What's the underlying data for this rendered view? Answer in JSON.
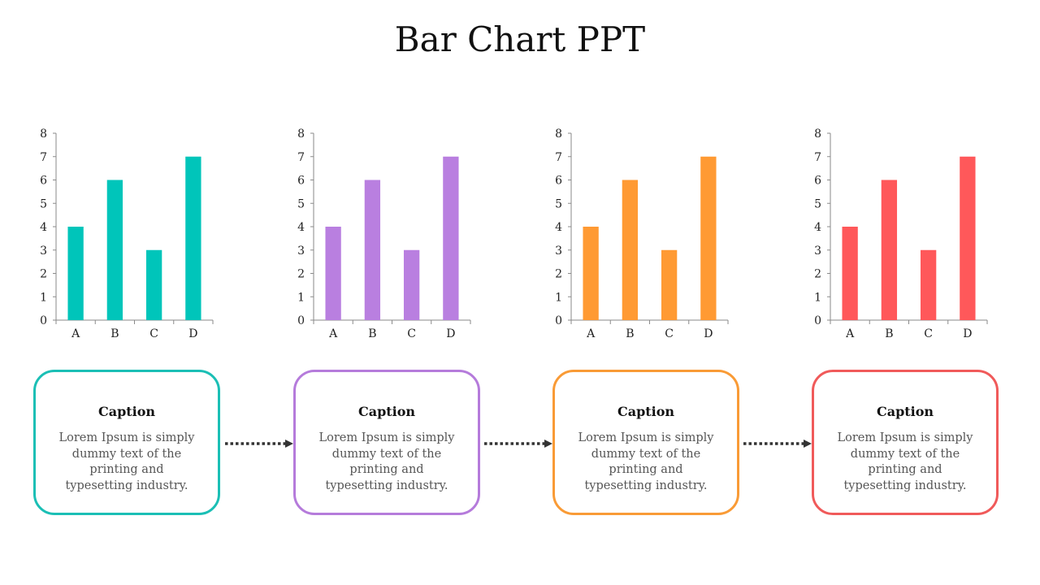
{
  "title": "Bar Chart PPT",
  "chart_data": [
    {
      "type": "bar",
      "categories": [
        "A",
        "B",
        "C",
        "D"
      ],
      "values": [
        4,
        6,
        3,
        7
      ],
      "ylim": [
        0,
        8
      ],
      "yticks": [
        "0",
        "1",
        "2",
        "3",
        "4",
        "5",
        "6",
        "7",
        "8"
      ],
      "color": "#00C5BA"
    },
    {
      "type": "bar",
      "categories": [
        "A",
        "B",
        "C",
        "D"
      ],
      "values": [
        4,
        6,
        3,
        7
      ],
      "ylim": [
        0,
        8
      ],
      "yticks": [
        "0",
        "1",
        "2",
        "3",
        "4",
        "5",
        "6",
        "7",
        "8"
      ],
      "color": "#B97FE0"
    },
    {
      "type": "bar",
      "categories": [
        "A",
        "B",
        "C",
        "D"
      ],
      "values": [
        4,
        6,
        3,
        7
      ],
      "ylim": [
        0,
        8
      ],
      "yticks": [
        "0",
        "1",
        "2",
        "3",
        "4",
        "5",
        "6",
        "7",
        "8"
      ],
      "color": "#FF9A33"
    },
    {
      "type": "bar",
      "categories": [
        "A",
        "B",
        "C",
        "D"
      ],
      "values": [
        4,
        6,
        3,
        7
      ],
      "ylim": [
        0,
        8
      ],
      "yticks": [
        "0",
        "1",
        "2",
        "3",
        "4",
        "5",
        "6",
        "7",
        "8"
      ],
      "color": "#FF585A"
    }
  ],
  "captions": [
    {
      "title": "Caption",
      "text": "Lorem Ipsum is simply dummy text of the printing and typesetting industry.",
      "color": "#1BBFB5"
    },
    {
      "title": "Caption",
      "text": "Lorem Ipsum is simply dummy text of the printing and typesetting industry.",
      "color": "#B57BDB"
    },
    {
      "title": "Caption",
      "text": "Lorem Ipsum is simply dummy text of the printing and typesetting industry.",
      "color": "#F99B36"
    },
    {
      "title": "Caption",
      "text": "Lorem Ipsum is simply dummy text of the printing and typesetting industry.",
      "color": "#F05A5A"
    }
  ],
  "connector_color": "#333333"
}
